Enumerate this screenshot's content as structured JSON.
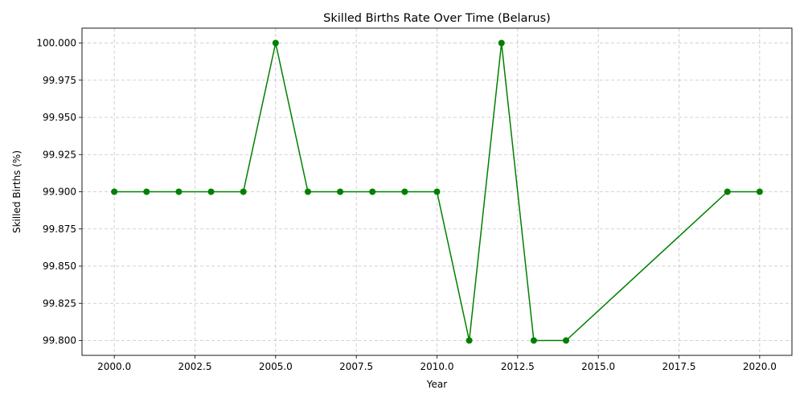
{
  "chart_data": {
    "type": "line",
    "title": "Skilled Births Rate Over Time (Belarus)",
    "xlabel": "Year",
    "ylabel": "Skilled Births (%)",
    "xlim": [
      1999.0,
      2021.0
    ],
    "ylim": [
      99.79,
      100.01
    ],
    "xticks": [
      2000.0,
      2002.5,
      2005.0,
      2007.5,
      2010.0,
      2012.5,
      2015.0,
      2017.5,
      2020.0
    ],
    "xtick_labels": [
      "2000.0",
      "2002.5",
      "2005.0",
      "2007.5",
      "2010.0",
      "2012.5",
      "2015.0",
      "2017.5",
      "2020.0"
    ],
    "yticks": [
      99.8,
      99.825,
      99.85,
      99.875,
      99.9,
      99.925,
      99.95,
      99.975,
      100.0
    ],
    "ytick_labels": [
      "99.800",
      "99.825",
      "99.850",
      "99.875",
      "99.900",
      "99.925",
      "99.950",
      "99.975",
      "100.000"
    ],
    "grid": true,
    "series": [
      {
        "color": "#008000",
        "marker": "circle",
        "x": [
          2000,
          2001,
          2002,
          2003,
          2004,
          2005,
          2006,
          2007,
          2008,
          2009,
          2010,
          2011,
          2012,
          2013,
          2014,
          2019,
          2020
        ],
        "y": [
          99.9,
          99.9,
          99.9,
          99.9,
          99.9,
          100.0,
          99.9,
          99.9,
          99.9,
          99.9,
          99.9,
          99.8,
          100.0,
          99.8,
          99.8,
          99.9,
          99.9
        ]
      }
    ]
  }
}
